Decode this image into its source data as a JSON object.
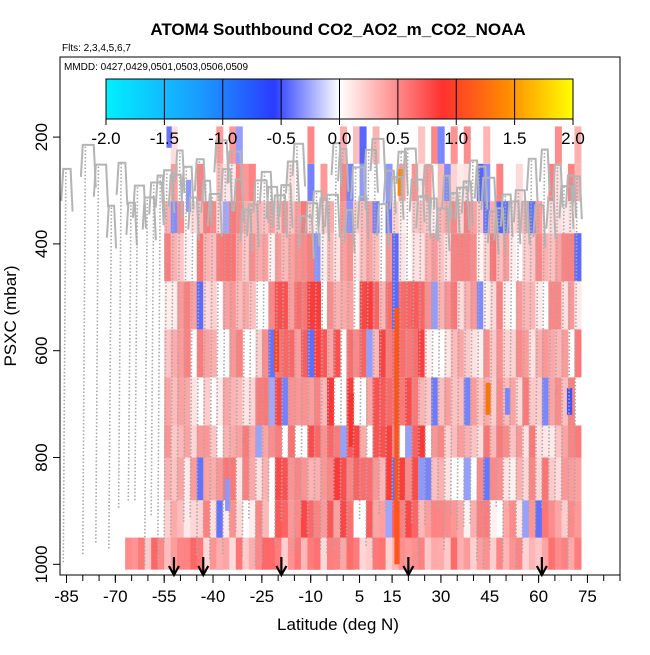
{
  "chart_data": {
    "type": "heatmap",
    "title": "ATOM4 Southbound CO2_AO2_m_CO2_NOAA",
    "flights_note": "Flts: 2,3,4,5,6,7",
    "dates_note": "MMDD: 0427,0429,0501,0503,0506,0509",
    "xlabel": "Latitude (deg N)",
    "ylabel": "PSXC (mbar)",
    "xlim": [
      -87,
      85
    ],
    "ylim": [
      1020,
      50
    ],
    "x_ticks": [
      -85,
      -70,
      -55,
      -40,
      -25,
      -10,
      5,
      15,
      30,
      45,
      60,
      75
    ],
    "x_minor_step": 5,
    "y_ticks": [
      200,
      400,
      600,
      800,
      1000
    ],
    "colorbar": {
      "range": [
        -2.0,
        2.0
      ],
      "ticks": [
        "-2.0",
        "-1.5",
        "-1.0",
        "-0.5",
        "0.0",
        "0.5",
        "1.0",
        "1.5",
        "2.0"
      ],
      "colors": [
        "#00f0ff",
        "#1a9cff",
        "#2a3cff",
        "#ffffff",
        "#ff3030",
        "#ff8c00",
        "#ffff00"
      ]
    },
    "column_width_deg": 2,
    "level_edges_mbar": [
      950,
      880,
      800,
      740,
      650,
      560,
      470,
      380,
      320,
      250,
      180
    ],
    "column_lat_start": -55,
    "column_lat_end": 72,
    "profile_latitudes": [
      -86,
      -80,
      -76,
      -72,
      -69,
      -66,
      -64,
      -61,
      -59,
      -57,
      -55,
      -53,
      -51,
      -49,
      -47,
      -45,
      -43,
      -41,
      -39,
      -37,
      -35,
      -33,
      -31,
      -29,
      -27,
      -25,
      -23,
      -21,
      -19,
      -17,
      -15,
      -13,
      -11,
      -9,
      -7,
      -5,
      -3,
      -1,
      1,
      3,
      5,
      7,
      9,
      11,
      13,
      15,
      17,
      19,
      21,
      23,
      25,
      27,
      29,
      31,
      33,
      35,
      37,
      39,
      41,
      43,
      45,
      47,
      49,
      51,
      53,
      55,
      57,
      59,
      61,
      63,
      65,
      67,
      69,
      71
    ],
    "highlights": [
      {
        "lat": 17.5,
        "p_top": 260,
        "p_bottom": 310,
        "value": 1.4
      },
      {
        "lat": 44.5,
        "p_top": 660,
        "p_bottom": 720,
        "value": 1.3
      },
      {
        "lat": 16.5,
        "p_top": 520,
        "p_bottom": 1000,
        "value": 1.1
      },
      {
        "lat": -20.5,
        "p_top": 560,
        "p_bottom": 640,
        "value": 1.0
      },
      {
        "lat": 2.5,
        "p_top": 680,
        "p_bottom": 780,
        "value": 0.9
      },
      {
        "lat": -47.5,
        "p_top": 280,
        "p_bottom": 340,
        "value": -0.3
      },
      {
        "lat": 50.5,
        "p_top": 670,
        "p_bottom": 720,
        "value": -0.35
      },
      {
        "lat": -53.5,
        "p_top": 180,
        "p_bottom": 220,
        "value": -0.4
      },
      {
        "lat": 69.5,
        "p_top": 670,
        "p_bottom": 720,
        "value": -0.5
      },
      {
        "lat": -35.5,
        "p_top": 840,
        "p_bottom": 900,
        "value": -0.3
      }
    ],
    "arrow_latitudes": [
      -52,
      -43,
      -19,
      20,
      61
    ]
  }
}
